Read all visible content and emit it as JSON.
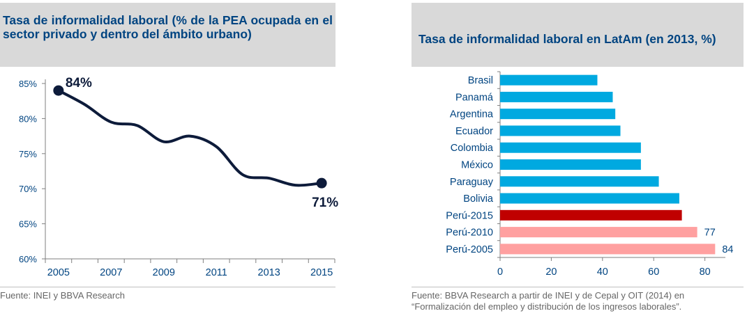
{
  "chart_data": [
    {
      "type": "line",
      "title": "Tasa de informalidad laboral (% de la PEA ocupada en el sector privado y dentro del ámbito urbano)",
      "source": "Fuente: INEI y BBVA Research",
      "x": [
        2005,
        2006,
        2007,
        2008,
        2009,
        2010,
        2011,
        2012,
        2013,
        2014,
        2015
      ],
      "series": [
        {
          "values": [
            84,
            82,
            79.5,
            79,
            76.7,
            77.5,
            76,
            72,
            71.5,
            70.5,
            70.8
          ],
          "color": "#0d1b3a"
        }
      ],
      "x_ticks": [
        "2005",
        "2007",
        "2009",
        "2011",
        "2013",
        "2015"
      ],
      "x_tick_values": [
        2005,
        2007,
        2009,
        2011,
        2013,
        2015
      ],
      "y_ticks": [
        "85%",
        "80%",
        "75%",
        "70%",
        "65%",
        "60%"
      ],
      "y_tick_values": [
        85,
        80,
        75,
        70,
        65,
        60
      ],
      "xlim": [
        2004.5,
        2015.5
      ],
      "ylim": [
        60,
        85
      ],
      "grid": false,
      "annotations": [
        {
          "x": 2005,
          "y": 84,
          "text": "84%"
        },
        {
          "x": 2015,
          "y": 70.8,
          "text": "71%"
        }
      ]
    },
    {
      "type": "bar",
      "orientation": "horizontal",
      "title": "Tasa de informalidad laboral en LatAm (en 2013, %)",
      "source": "Fuente: BBVA Research a partir de INEI y de Cepal y OIT (2014) en “Formalización del empleo y distribución de los ingresos laborales”.",
      "categories": [
        "Brasil",
        "Panamá",
        "Argentina",
        "Ecuador",
        "Colombia",
        "México",
        "Paraguay",
        "Bolivia",
        "Perú-2015",
        "Perú-2010",
        "Perú-2005"
      ],
      "values": [
        38,
        44,
        45,
        47,
        55,
        55,
        62,
        70,
        71,
        77,
        84
      ],
      "colors": [
        "#00a9e0",
        "#00a9e0",
        "#00a9e0",
        "#00a9e0",
        "#00a9e0",
        "#00a9e0",
        "#00a9e0",
        "#00a9e0",
        "#c00000",
        "#ffa0a0",
        "#ffa0a0"
      ],
      "data_labels": [
        "",
        "",
        "",
        "",
        "",
        "",
        "",
        "",
        "",
        "77",
        "84"
      ],
      "x_ticks": [
        "0",
        "20",
        "40",
        "60",
        "80"
      ],
      "x_tick_values": [
        0,
        20,
        40,
        60,
        80
      ],
      "xlim": [
        0,
        88
      ],
      "grid": false
    }
  ]
}
